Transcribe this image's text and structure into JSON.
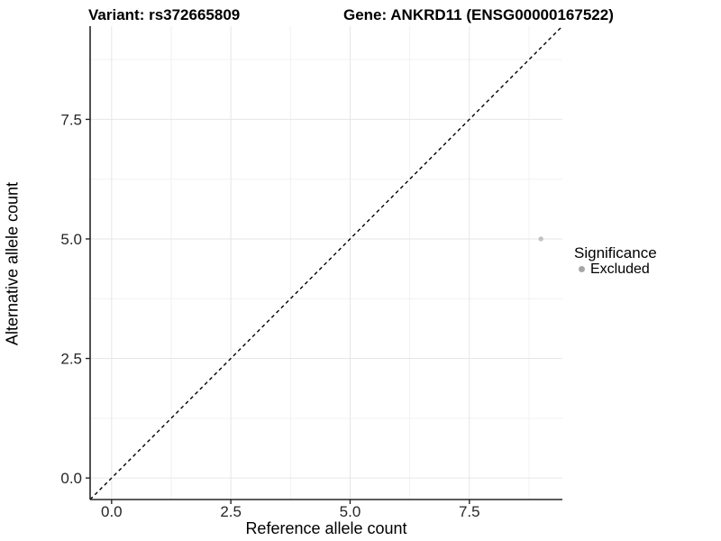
{
  "header": {
    "variant_title": "Variant: rs372665809",
    "gene_title": "Gene: ANKRD11 (ENSG00000167522)"
  },
  "chart_data": {
    "type": "scatter",
    "xlabel": "Reference allele count",
    "ylabel": "Alternative allele count",
    "xlim": [
      -0.45,
      9.45
    ],
    "ylim": [
      -0.45,
      9.45
    ],
    "x_ticks": [
      0,
      2.5,
      5,
      7.5
    ],
    "x_tick_labels": [
      "0.0",
      "2.5",
      "5.0",
      "7.5"
    ],
    "y_ticks": [
      0,
      2.5,
      5,
      7.5
    ],
    "y_tick_labels": [
      "0.0",
      "2.5",
      "5.0",
      "7.5"
    ],
    "x_minor_breaks": [
      1.25,
      3.75,
      6.25,
      8.75
    ],
    "y_minor_breaks": [
      1.25,
      3.75,
      6.25,
      8.75
    ],
    "grid": "major+minor",
    "identity_line": {
      "equation": "y = x",
      "style": "dashed",
      "color": "#000000"
    },
    "series": [
      {
        "name": "Excluded",
        "color": "#c2c2c2",
        "points": [
          {
            "x": 9,
            "y": 5
          }
        ]
      }
    ],
    "legend": {
      "title": "Significance",
      "position": "right",
      "entries": [
        {
          "label": "Excluded",
          "color": "#a6a6a6"
        }
      ]
    }
  },
  "colors": {
    "background": "#ffffff",
    "grid_major": "#e6e6e6",
    "grid_minor": "#f2f2f2",
    "axis_line": "#262626",
    "tick_mark": "#262626",
    "tick_label": "#262626",
    "title_text": "#000000"
  }
}
